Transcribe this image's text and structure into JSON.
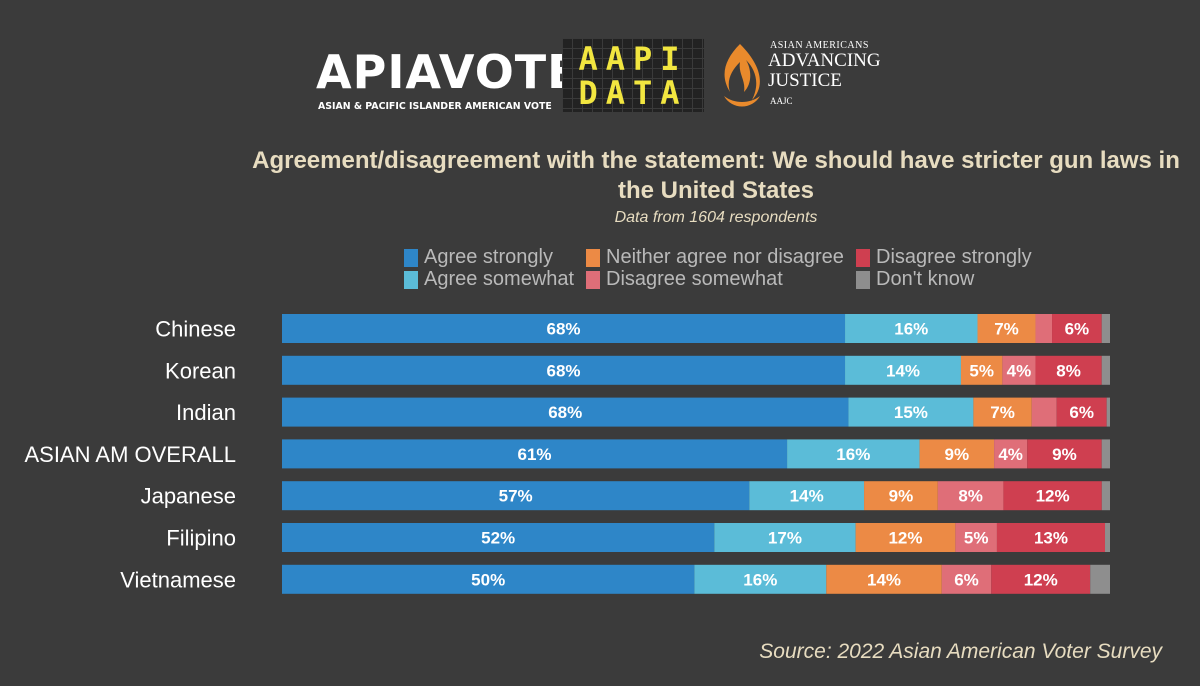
{
  "logos": {
    "apiavote": {
      "word": "APIAVOTE",
      "tagline": "ASIAN & PACIFIC ISLANDER AMERICAN VOTE"
    },
    "aapidata": {
      "line1": "AAPI",
      "line2": "DATA"
    },
    "aajc": {
      "line1": "ASIAN AMERICANS",
      "line2": "ADVANCING",
      "line3": "JUSTICE",
      "line4": "AAJC"
    }
  },
  "chart_data": {
    "type": "bar",
    "orientation": "horizontal",
    "stacked": true,
    "title": "Agreement/disagreement with the statement: We should have stricter gun laws in the United States",
    "subtitle": "Data from 1604 respondents",
    "source": "Source: 2022 Asian American Voter Survey",
    "categories": [
      "Chinese",
      "Korean",
      "Indian",
      "ASIAN AM OVERALL",
      "Japanese",
      "Filipino",
      "Vietnamese"
    ],
    "series": [
      {
        "name": "Agree strongly",
        "color": "#2e86c8",
        "values": [
          68,
          68,
          68,
          61,
          57,
          52,
          50
        ]
      },
      {
        "name": "Agree somewhat",
        "color": "#5bbcd8",
        "values": [
          16,
          14,
          15,
          16,
          14,
          17,
          16
        ]
      },
      {
        "name": "Neither agree nor disagree",
        "color": "#ec8a45",
        "values": [
          7,
          5,
          7,
          9,
          9,
          12,
          14
        ]
      },
      {
        "name": "Disagree somewhat",
        "color": "#df6e78",
        "values": [
          2,
          4,
          3,
          4,
          8,
          5,
          6
        ]
      },
      {
        "name": "Disagree strongly",
        "color": "#cf3f50",
        "values": [
          6,
          8,
          6,
          9,
          12,
          13,
          12
        ]
      },
      {
        "name": "Don't know",
        "color": "#8e8e8e",
        "values": [
          1,
          1,
          0.4,
          1,
          1,
          0.6,
          2.4
        ]
      }
    ],
    "data_labels": [
      [
        "68%",
        "16%",
        "7%",
        "",
        "6%",
        ""
      ],
      [
        "68%",
        "14%",
        "5%",
        "4%",
        "8%",
        ""
      ],
      [
        "68%",
        "15%",
        "7%",
        "",
        "6%",
        ""
      ],
      [
        "61%",
        "16%",
        "9%",
        "4%",
        "9%",
        ""
      ],
      [
        "57%",
        "14%",
        "9%",
        "8%",
        "12%",
        ""
      ],
      [
        "52%",
        "17%",
        "12%",
        "5%",
        "13%",
        ""
      ],
      [
        "50%",
        "16%",
        "14%",
        "6%",
        "12%",
        ""
      ]
    ],
    "xlim": [
      0,
      100
    ],
    "grid": false,
    "legend_position": "top"
  }
}
